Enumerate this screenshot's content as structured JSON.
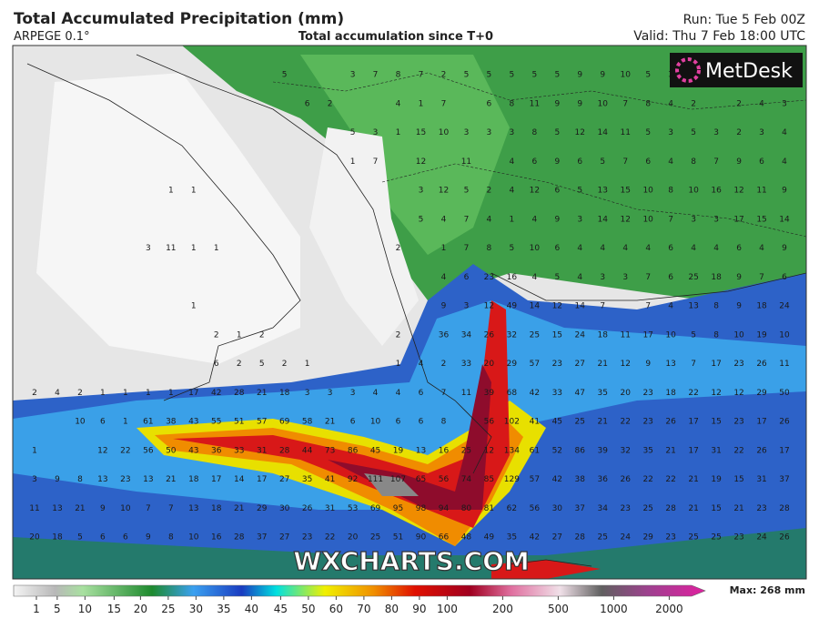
{
  "header": {
    "title": "Total Accumulated Precipitation (mm)",
    "model": "ARPEGE 0.1°",
    "subtitle": "Total accumulation since T+0",
    "run": "Run: Tue 5 Feb 00Z",
    "valid": "Valid: Thu 7 Feb 18:00 UTC"
  },
  "logo": "MetDesk",
  "watermark": "WXCHARTS.COM",
  "colorbar": {
    "labels": [
      1,
      5,
      10,
      15,
      20,
      25,
      30,
      35,
      40,
      45,
      50,
      60,
      70,
      80,
      90,
      100,
      200,
      500,
      1000,
      2000
    ],
    "max_label": "Max: 268 mm"
  },
  "grid_rows": [
    [
      null,
      null,
      null,
      null,
      null,
      null,
      null,
      null,
      null,
      null,
      null,
      5,
      null,
      null,
      3,
      7,
      8,
      7,
      2,
      5,
      5,
      5,
      5,
      5,
      9,
      9,
      10,
      5,
      3,
      null,
      null,
      null,
      null,
      null
    ],
    [
      null,
      null,
      null,
      null,
      null,
      null,
      null,
      null,
      null,
      null,
      null,
      null,
      6,
      2,
      null,
      null,
      4,
      1,
      7,
      null,
      6,
      8,
      11,
      9,
      9,
      10,
      7,
      8,
      4,
      2,
      null,
      2,
      4,
      3
    ],
    [
      null,
      null,
      null,
      null,
      null,
      null,
      null,
      null,
      null,
      null,
      null,
      null,
      null,
      null,
      5,
      3,
      1,
      15,
      10,
      3,
      3,
      3,
      8,
      5,
      12,
      14,
      11,
      5,
      3,
      5,
      3,
      2,
      3,
      4
    ],
    [
      null,
      null,
      null,
      null,
      null,
      null,
      null,
      null,
      null,
      null,
      null,
      null,
      null,
      null,
      1,
      7,
      null,
      12,
      null,
      11,
      null,
      4,
      6,
      9,
      6,
      5,
      7,
      6,
      4,
      8,
      7,
      9,
      6,
      4
    ],
    [
      null,
      null,
      null,
      null,
      null,
      null,
      1,
      1,
      null,
      null,
      null,
      null,
      null,
      null,
      null,
      null,
      null,
      3,
      12,
      5,
      2,
      4,
      12,
      6,
      5,
      13,
      15,
      10,
      8,
      10,
      16,
      12,
      11,
      9
    ],
    [
      null,
      null,
      null,
      null,
      null,
      null,
      null,
      null,
      null,
      null,
      null,
      null,
      null,
      null,
      null,
      null,
      null,
      5,
      4,
      7,
      4,
      1,
      4,
      9,
      3,
      14,
      12,
      10,
      7,
      3,
      3,
      17,
      15,
      14
    ],
    [
      null,
      null,
      null,
      null,
      null,
      3,
      11,
      1,
      1,
      null,
      null,
      null,
      null,
      null,
      null,
      null,
      2,
      null,
      1,
      7,
      8,
      5,
      10,
      6,
      4,
      4,
      4,
      4,
      6,
      4,
      4,
      6,
      4,
      9
    ],
    [
      null,
      null,
      null,
      null,
      null,
      null,
      null,
      null,
      null,
      null,
      null,
      null,
      null,
      null,
      null,
      null,
      null,
      null,
      4,
      6,
      23,
      16,
      4,
      5,
      4,
      3,
      3,
      7,
      6,
      25,
      18,
      9,
      7,
      6
    ],
    [
      null,
      null,
      null,
      null,
      null,
      null,
      null,
      1,
      null,
      null,
      null,
      null,
      null,
      null,
      null,
      null,
      null,
      null,
      9,
      3,
      12,
      49,
      14,
      12,
      14,
      7,
      null,
      7,
      4,
      13,
      8,
      9,
      18,
      24
    ],
    [
      null,
      null,
      null,
      null,
      null,
      null,
      null,
      null,
      2,
      1,
      2,
      null,
      null,
      null,
      null,
      null,
      2,
      null,
      36,
      34,
      26,
      32,
      25,
      15,
      24,
      18,
      11,
      17,
      10,
      5,
      8,
      10,
      19,
      10
    ],
    [
      null,
      null,
      null,
      null,
      null,
      null,
      null,
      null,
      6,
      2,
      5,
      2,
      1,
      null,
      null,
      null,
      1,
      4,
      2,
      33,
      20,
      29,
      57,
      23,
      27,
      21,
      12,
      9,
      13,
      7,
      17,
      23,
      26,
      11
    ],
    [
      2,
      4,
      2,
      1,
      1,
      1,
      1,
      17,
      42,
      28,
      21,
      18,
      3,
      3,
      3,
      4,
      4,
      6,
      7,
      11,
      39,
      68,
      42,
      33,
      47,
      35,
      20,
      23,
      18,
      22,
      12,
      12,
      29,
      50
    ],
    [
      null,
      null,
      10,
      6,
      1,
      61,
      38,
      43,
      55,
      51,
      57,
      69,
      58,
      21,
      6,
      10,
      6,
      6,
      8,
      null,
      56,
      102,
      41,
      45,
      25,
      21,
      22,
      23,
      26,
      17,
      15,
      23,
      17,
      26
    ],
    [
      1,
      null,
      null,
      12,
      22,
      56,
      50,
      43,
      36,
      33,
      31,
      28,
      44,
      73,
      86,
      45,
      19,
      13,
      16,
      25,
      12,
      134,
      61,
      52,
      86,
      39,
      32,
      35,
      21,
      17,
      31,
      22,
      26,
      17
    ],
    [
      3,
      9,
      8,
      13,
      23,
      13,
      21,
      18,
      17,
      14,
      17,
      27,
      35,
      41,
      92,
      111,
      107,
      65,
      56,
      74,
      85,
      129,
      57,
      42,
      38,
      36,
      26,
      22,
      22,
      21,
      19,
      15,
      31,
      37
    ],
    [
      11,
      13,
      21,
      9,
      10,
      7,
      7,
      13,
      18,
      21,
      29,
      30,
      26,
      31,
      53,
      69,
      95,
      98,
      94,
      80,
      81,
      62,
      56,
      30,
      37,
      34,
      23,
      25,
      28,
      21,
      15,
      21,
      23,
      28
    ],
    [
      20,
      18,
      5,
      6,
      6,
      9,
      8,
      10,
      16,
      28,
      37,
      27,
      23,
      22,
      20,
      25,
      51,
      90,
      66,
      48,
      49,
      35,
      42,
      27,
      28,
      25,
      24,
      29,
      23,
      25,
      25,
      23,
      24,
      26
    ]
  ]
}
